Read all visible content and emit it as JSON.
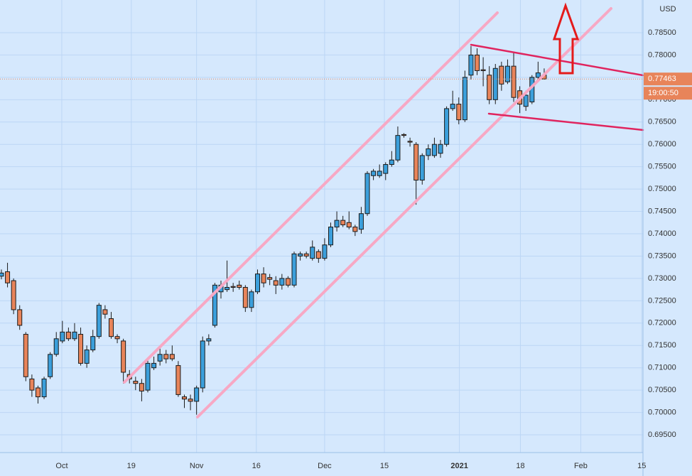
{
  "chart_data": {
    "type": "candlestick",
    "currency_label": "USD",
    "categories": [
      null,
      null,
      null,
      null,
      null,
      null,
      null,
      null,
      null,
      null,
      null,
      null,
      null,
      null,
      null,
      null,
      null,
      null,
      null,
      null,
      null,
      null,
      null,
      null,
      null,
      null,
      null,
      null,
      null,
      null,
      null,
      null,
      null,
      null,
      null,
      null,
      null,
      null,
      null,
      null,
      null,
      null,
      null,
      null,
      null,
      null,
      null,
      null,
      null,
      null,
      null,
      null,
      null,
      null,
      null,
      null,
      null,
      null,
      null,
      null,
      null,
      null,
      null,
      null,
      null,
      null,
      null,
      null,
      null,
      null,
      null,
      null,
      null,
      null,
      null,
      null,
      null,
      null,
      null,
      null,
      null,
      null,
      null,
      null,
      null,
      null,
      null,
      null,
      null,
      null
    ],
    "open": [
      0.7305,
      0.7315,
      0.7295,
      0.723,
      0.7175,
      0.7075,
      0.7055,
      0.7035,
      0.708,
      0.713,
      0.716,
      0.718,
      0.7165,
      0.7175,
      0.711,
      0.714,
      0.717,
      0.723,
      0.721,
      0.717,
      0.716,
      0.7085,
      0.707,
      0.7065,
      0.705,
      0.71,
      0.7115,
      0.713,
      0.713,
      0.7105,
      0.7035,
      0.703,
      0.7025,
      0.7055,
      0.716,
      0.7195,
      0.727,
      0.7275,
      0.7282,
      0.7285,
      0.728,
      0.7235,
      0.727,
      0.731,
      0.7302,
      0.7295,
      0.7285,
      0.73,
      0.7285,
      0.735,
      0.7355,
      0.7345,
      0.736,
      0.7345,
      0.7375,
      0.7415,
      0.743,
      0.7425,
      0.7415,
      0.741,
      0.7445,
      0.753,
      0.753,
      0.7535,
      0.7555,
      0.7565,
      0.7622,
      0.7607,
      0.76,
      0.752,
      0.7575,
      0.7575,
      0.758,
      0.76,
      0.768,
      0.769,
      0.7655,
      0.7755,
      0.78,
      0.7767,
      0.7755,
      0.77,
      0.7775,
      0.774,
      0.7775,
      0.772,
      0.7685,
      0.7695,
      0.775,
      0.7755
    ],
    "high": [
      0.732,
      0.7335,
      0.73,
      0.724,
      0.718,
      0.7085,
      0.706,
      0.708,
      0.7135,
      0.718,
      0.7205,
      0.719,
      0.72,
      0.719,
      0.715,
      0.7185,
      0.7245,
      0.724,
      0.7225,
      0.7175,
      0.7165,
      0.7095,
      0.708,
      0.7075,
      0.712,
      0.7125,
      0.7145,
      0.714,
      0.715,
      0.7115,
      0.704,
      0.704,
      0.706,
      0.717,
      0.7175,
      0.729,
      0.7295,
      0.734,
      0.729,
      0.7295,
      0.7285,
      0.7275,
      0.732,
      0.7325,
      0.731,
      0.7305,
      0.731,
      0.7305,
      0.736,
      0.736,
      0.736,
      0.7385,
      0.7365,
      0.739,
      0.7425,
      0.745,
      0.744,
      0.745,
      0.742,
      0.746,
      0.754,
      0.7545,
      0.7555,
      0.756,
      0.7585,
      0.764,
      0.7625,
      0.7615,
      0.7605,
      0.758,
      0.76,
      0.7615,
      0.761,
      0.7685,
      0.772,
      0.7705,
      0.7765,
      0.782,
      0.7815,
      0.7795,
      0.7775,
      0.778,
      0.7785,
      0.779,
      0.7805,
      0.773,
      0.772,
      0.7755,
      0.7785,
      0.777
    ],
    "low": [
      0.7298,
      0.728,
      0.722,
      0.7185,
      0.707,
      0.7035,
      0.702,
      0.703,
      0.7075,
      0.7125,
      0.7155,
      0.716,
      0.716,
      0.7105,
      0.71,
      0.7135,
      0.7165,
      0.721,
      0.7165,
      0.7155,
      0.7065,
      0.7065,
      0.705,
      0.7025,
      0.7045,
      0.7095,
      0.7105,
      0.711,
      0.7115,
      0.7035,
      0.701,
      0.7005,
      0.6995,
      0.7045,
      0.715,
      0.719,
      0.7255,
      0.727,
      0.727,
      0.7275,
      0.7225,
      0.7225,
      0.7265,
      0.728,
      0.7285,
      0.7265,
      0.7275,
      0.728,
      0.728,
      0.734,
      0.7345,
      0.734,
      0.7335,
      0.734,
      0.737,
      0.7405,
      0.7415,
      0.741,
      0.7395,
      0.74,
      0.744,
      0.752,
      0.7525,
      0.752,
      0.755,
      0.756,
      0.7615,
      0.7595,
      0.7465,
      0.751,
      0.7565,
      0.757,
      0.757,
      0.7595,
      0.7675,
      0.7645,
      0.765,
      0.7745,
      0.7755,
      0.773,
      0.769,
      0.769,
      0.772,
      0.7735,
      0.7695,
      0.767,
      0.7675,
      0.769,
      0.774,
      0.7745
    ],
    "close": [
      0.7312,
      0.729,
      0.723,
      0.7195,
      0.708,
      0.705,
      0.7035,
      0.7075,
      0.713,
      0.7165,
      0.718,
      0.7165,
      0.718,
      0.711,
      0.714,
      0.717,
      0.724,
      0.722,
      0.717,
      0.7165,
      0.709,
      0.7075,
      0.7065,
      0.7048,
      0.711,
      0.711,
      0.713,
      0.712,
      0.712,
      0.704,
      0.703,
      0.7025,
      0.7055,
      0.716,
      0.7165,
      0.7285,
      0.7285,
      0.728,
      0.728,
      0.728,
      0.7235,
      0.727,
      0.731,
      0.729,
      0.7298,
      0.7285,
      0.73,
      0.7285,
      0.7355,
      0.7355,
      0.735,
      0.737,
      0.7345,
      0.7375,
      0.7415,
      0.743,
      0.742,
      0.7415,
      0.7405,
      0.7445,
      0.7535,
      0.754,
      0.754,
      0.7555,
      0.7565,
      0.762,
      0.762,
      0.7605,
      0.752,
      0.7575,
      0.759,
      0.76,
      0.76,
      0.768,
      0.769,
      0.7655,
      0.775,
      0.78,
      0.7765,
      0.7765,
      0.77,
      0.777,
      0.7735,
      0.7775,
      0.7705,
      0.769,
      0.771,
      0.775,
      0.776,
      0.77463
    ],
    "up_color": "#3b9fdb",
    "down_color": "#e8845a",
    "xlim": [
      -0.23,
      105.2
    ],
    "xticks": [
      {
        "value": 9.9,
        "label": "Oct"
      },
      {
        "value": 21.3,
        "label": "19"
      },
      {
        "value": 32.0,
        "label": "Nov"
      },
      {
        "value": 41.8,
        "label": "16"
      },
      {
        "value": 53.0,
        "label": "Dec"
      },
      {
        "value": 62.8,
        "label": "15"
      },
      {
        "value": 75.1,
        "label": "2021"
      },
      {
        "value": 85.1,
        "label": "18"
      },
      {
        "value": 95.0,
        "label": "Feb"
      },
      {
        "value": 105.0,
        "label": "15"
      }
    ],
    "ylim": [
      0.69103,
      0.79231
    ],
    "yticks": [
      {
        "value": 0.695,
        "label": "0.69500"
      },
      {
        "value": 0.7,
        "label": "0.70000"
      },
      {
        "value": 0.705,
        "label": "0.70500"
      },
      {
        "value": 0.71,
        "label": "0.71000"
      },
      {
        "value": 0.715,
        "label": "0.71500"
      },
      {
        "value": 0.72,
        "label": "0.72000"
      },
      {
        "value": 0.725,
        "label": "0.72500"
      },
      {
        "value": 0.73,
        "label": "0.73000"
      },
      {
        "value": 0.735,
        "label": "0.73500"
      },
      {
        "value": 0.74,
        "label": "0.74000"
      },
      {
        "value": 0.745,
        "label": "0.74500"
      },
      {
        "value": 0.75,
        "label": "0.75000"
      },
      {
        "value": 0.755,
        "label": "0.75500"
      },
      {
        "value": 0.76,
        "label": "0.76000"
      },
      {
        "value": 0.765,
        "label": "0.76500"
      },
      {
        "value": 0.77,
        "label": "0.77000"
      },
      {
        "value": 0.775,
        "label": "0.77500"
      },
      {
        "value": 0.78,
        "label": "0.78000"
      },
      {
        "value": 0.785,
        "label": "0.78500"
      }
    ],
    "grid": true,
    "last_price": {
      "value": 0.77463,
      "label": "0.77463"
    },
    "countdown": "19:00:50"
  }
}
